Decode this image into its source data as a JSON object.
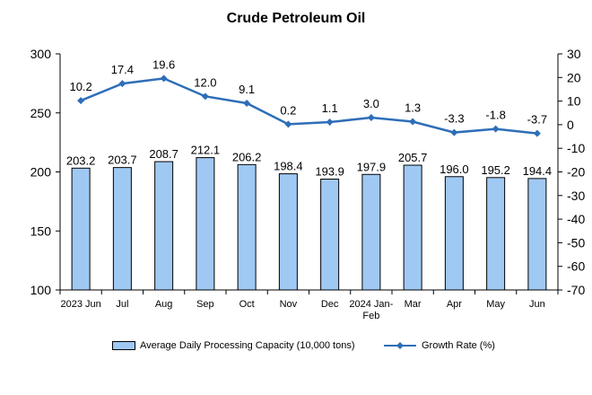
{
  "chart_data": {
    "type": "bar+line",
    "title": "Crude Petroleum Oil",
    "categories": [
      "2023 Jun",
      "Jul",
      "Aug",
      "Sep",
      "Oct",
      "Nov",
      "Dec",
      "2024 Jan-Feb",
      "Mar",
      "Apr",
      "May",
      "Jun"
    ],
    "series": [
      {
        "name": "Average Daily Processing Capacity (10,000 tons)",
        "type": "bar",
        "axis": "left",
        "values": [
          203.2,
          203.7,
          208.7,
          212.1,
          206.2,
          198.4,
          193.9,
          197.9,
          205.7,
          196.0,
          195.2,
          194.4
        ],
        "labels": [
          "203.2",
          "203.7",
          "208.7",
          "212.1",
          "206.2",
          "198.4",
          "193.9",
          "197.9",
          "205.7",
          "196.0",
          "195.2",
          "194.4"
        ],
        "color": "#9fc9f3"
      },
      {
        "name": "Growth Rate (%)",
        "type": "line",
        "axis": "right",
        "values": [
          10.2,
          17.4,
          19.6,
          12.0,
          9.1,
          0.2,
          1.1,
          3.0,
          1.3,
          -3.3,
          -1.8,
          -3.7
        ],
        "labels": [
          "10.2",
          "17.4",
          "19.6",
          "12.0",
          "9.1",
          "0.2",
          "1.1",
          "3.0",
          "1.3",
          "-3.3",
          "-1.8",
          "-3.7"
        ],
        "color": "#2e6eb8"
      }
    ],
    "y_left": {
      "min": 100,
      "max": 300,
      "ticks": [
        100,
        150,
        200,
        250,
        300
      ]
    },
    "y_right": {
      "min": -70,
      "max": 30,
      "ticks": [
        30,
        20,
        10,
        0,
        -10,
        -20,
        -30,
        -40,
        -50,
        -60,
        -70
      ]
    },
    "legend_position": "bottom"
  }
}
